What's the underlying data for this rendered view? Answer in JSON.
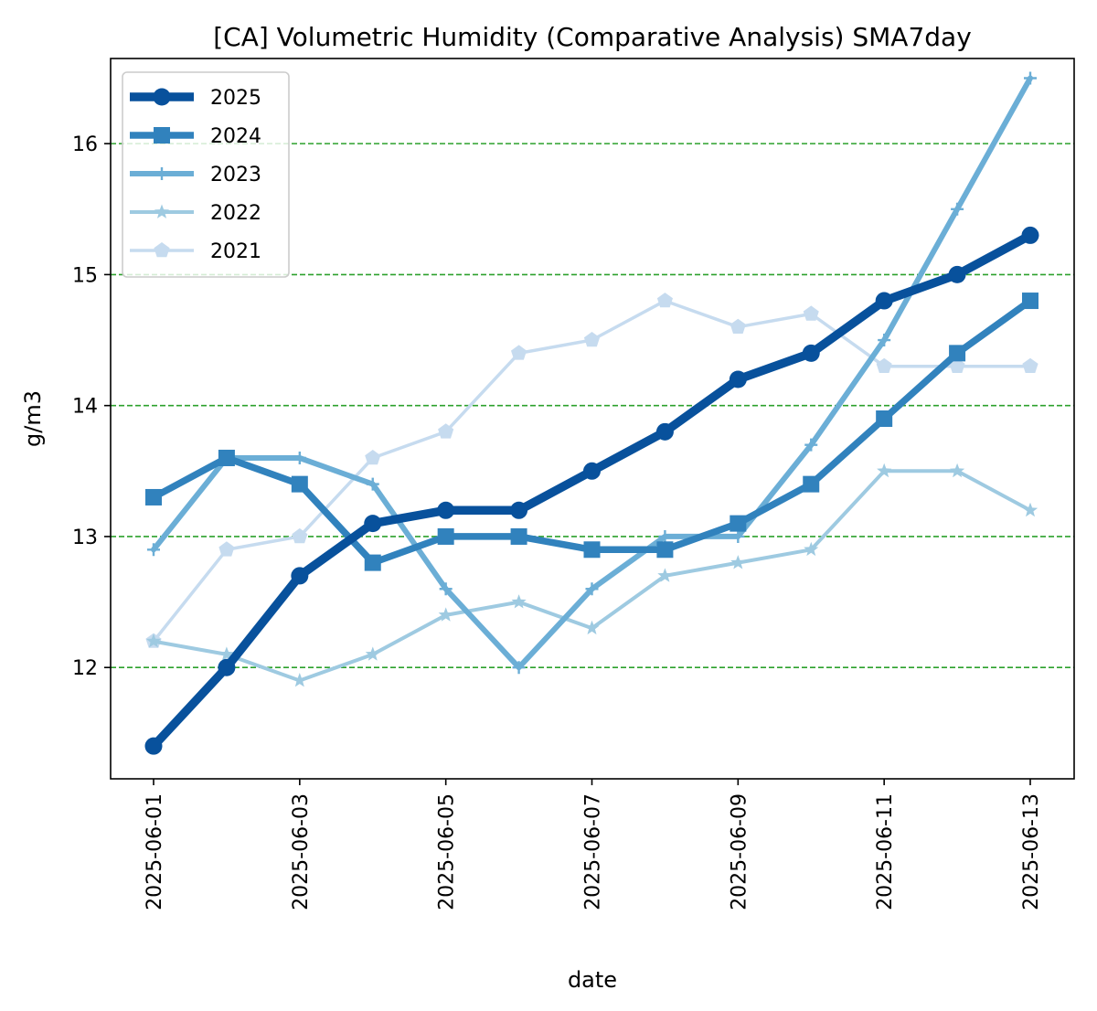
{
  "chart_data": {
    "type": "line",
    "title": "[CA] Volumetric Humidity (Comparative Analysis) SMA7day",
    "xlabel": "date",
    "ylabel": "g/m3",
    "x": [
      "2025-06-01",
      "2025-06-02",
      "2025-06-03",
      "2025-06-04",
      "2025-06-05",
      "2025-06-06",
      "2025-06-07",
      "2025-06-08",
      "2025-06-09",
      "2025-06-10",
      "2025-06-11",
      "2025-06-12",
      "2025-06-13"
    ],
    "x_ticks": [
      "2025-06-01",
      "2025-06-03",
      "2025-06-05",
      "2025-06-07",
      "2025-06-09",
      "2025-06-11",
      "2025-06-13"
    ],
    "y_ticks": [
      12,
      13,
      14,
      15,
      16
    ],
    "ylim": [
      11.15,
      16.65
    ],
    "grid": "horizontal dashed",
    "grid_color": "#2ca02c",
    "legend_position": "upper-left",
    "series": [
      {
        "name": "2025",
        "color": "#08519c",
        "marker": "circle",
        "values": [
          11.4,
          12.0,
          12.7,
          13.1,
          13.2,
          13.2,
          13.5,
          13.8,
          14.2,
          14.4,
          14.8,
          15.0,
          15.3
        ]
      },
      {
        "name": "2024",
        "color": "#3182bd",
        "marker": "square",
        "values": [
          13.3,
          13.6,
          13.4,
          12.8,
          13.0,
          13.0,
          12.9,
          12.9,
          13.1,
          13.4,
          13.9,
          14.4,
          14.8
        ]
      },
      {
        "name": "2023",
        "color": "#6baed6",
        "marker": "plus",
        "values": [
          12.9,
          13.6,
          13.6,
          13.4,
          12.6,
          12.0,
          12.6,
          13.0,
          13.0,
          13.7,
          14.5,
          15.5,
          16.5
        ]
      },
      {
        "name": "2022",
        "color": "#9ecae1",
        "marker": "star",
        "values": [
          12.2,
          12.1,
          11.9,
          12.1,
          12.4,
          12.5,
          12.3,
          12.7,
          12.8,
          12.9,
          13.5,
          13.5,
          13.2
        ]
      },
      {
        "name": "2021",
        "color": "#c6dbef",
        "marker": "pentagon",
        "values": [
          12.2,
          12.9,
          13.0,
          13.6,
          13.8,
          14.4,
          14.5,
          14.8,
          14.6,
          14.7,
          14.3,
          14.3,
          14.3
        ]
      }
    ]
  }
}
